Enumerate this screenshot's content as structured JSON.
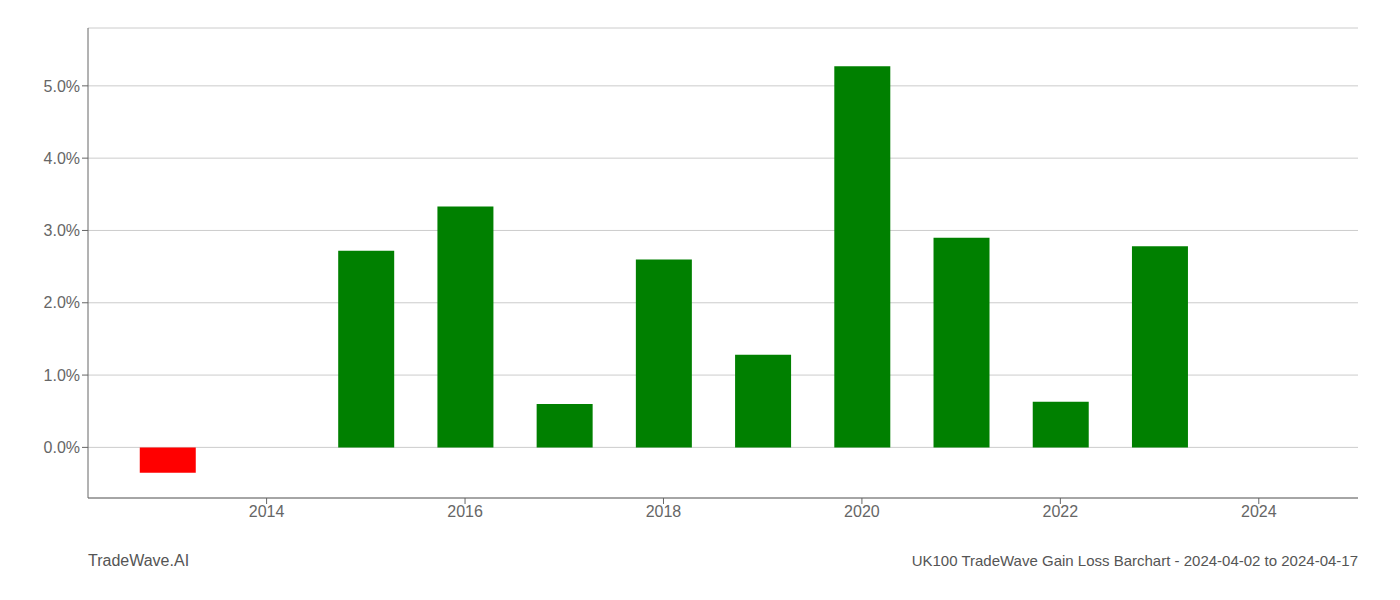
{
  "chart_data": {
    "type": "bar",
    "title": "UK100 TradeWave Gain Loss Barchart - 2024-04-02 to 2024-04-17",
    "annotations": [
      "TradeWave.AI"
    ],
    "x": [
      2013,
      2015,
      2016,
      2017,
      2018,
      2019,
      2020,
      2021,
      2022,
      2023
    ],
    "values": [
      -0.0035,
      0.0272,
      0.0333,
      0.006,
      0.026,
      0.0128,
      0.0527,
      0.029,
      0.0063,
      0.0278
    ],
    "colors": [
      "#ff0000",
      "#008000",
      "#008000",
      "#008000",
      "#008000",
      "#008000",
      "#008000",
      "#008000",
      "#008000",
      "#008000"
    ],
    "xlim": [
      2012.2,
      2025.0
    ],
    "xticks": [
      2014,
      2016,
      2018,
      2020,
      2022,
      2024
    ],
    "ylim": [
      -0.007,
      0.058
    ],
    "yticks": [
      {
        "value": 0.0,
        "label": "0.0%"
      },
      {
        "value": 0.01,
        "label": "1.0%"
      },
      {
        "value": 0.02,
        "label": "2.0%"
      },
      {
        "value": 0.03,
        "label": "3.0%"
      },
      {
        "value": 0.04,
        "label": "4.0%"
      },
      {
        "value": 0.05,
        "label": "5.0%"
      }
    ],
    "grid": true
  }
}
